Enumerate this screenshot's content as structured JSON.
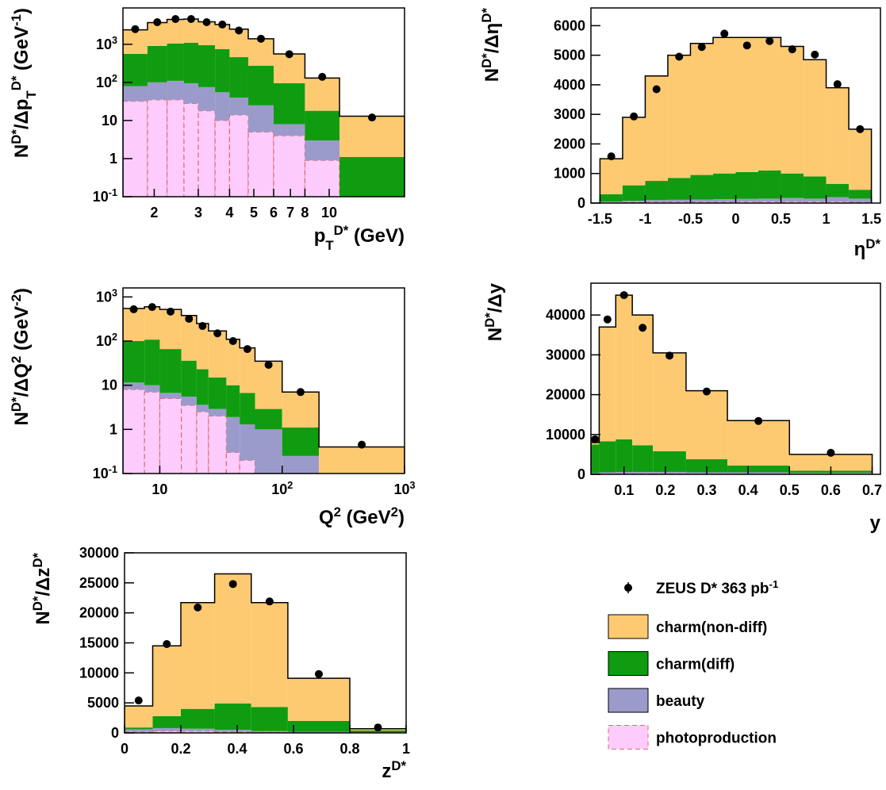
{
  "legend": {
    "points_name": "ZEUS D* 363 pb^{-1}",
    "points_color": "#000000",
    "series": [
      {
        "name": "charm(non-diff)",
        "color": "#fdca72"
      },
      {
        "name": "charm(diff)",
        "color": "#109c10"
      },
      {
        "name": "beauty",
        "color": "#9b9bcb"
      },
      {
        "name": "photoproduction",
        "color": "#fdccfd",
        "edge": "#e06a6a"
      }
    ]
  },
  "chart_data": [
    {
      "type": "histogram",
      "xlabel": "p_{T}^{D*} (GeV)",
      "ylabel": "N^{D*}/Δp_{T}^{D*} (GeV^{-1})",
      "xlog": true,
      "ylog": true,
      "xlim": [
        1.5,
        20
      ],
      "ylim": [
        0.1,
        9000
      ],
      "xticks": [
        2,
        3,
        4,
        5,
        6,
        7,
        8,
        10
      ],
      "yticks": [
        {
          "value": 0.1,
          "label": "10^{-1}"
        },
        1,
        10,
        {
          "value": 100,
          "label": "10^{2}"
        },
        {
          "value": 1000,
          "label": "10^{3}"
        }
      ],
      "bins": [
        1.5,
        1.88,
        2.25,
        2.63,
        3,
        3.5,
        4,
        4.75,
        6,
        8,
        11,
        20
      ],
      "series": [
        {
          "values": [
            1840,
            2790,
            3450,
            3500,
            2950,
            2550,
            2040,
            1125,
            465,
            112,
            11.9
          ]
        },
        {
          "values": [
            480,
            810,
            940,
            1005,
            875,
            695,
            420,
            250,
            87,
            15,
            1.1
          ]
        },
        {
          "values": [
            48,
            65,
            75,
            67,
            57,
            45,
            26,
            20,
            4,
            2.1,
            0
          ]
        },
        {
          "values": [
            32,
            35,
            35,
            28,
            18,
            10,
            14,
            5,
            4,
            0.9,
            0
          ]
        }
      ],
      "points": [
        2500,
        3800,
        4600,
        4600,
        3800,
        3300,
        2300,
        1400,
        550,
        140,
        12
      ]
    },
    {
      "type": "histogram",
      "xlabel": "η^{D*}",
      "ylabel": "N^{D*}/Δη^{D*}",
      "xlog": false,
      "ylog": false,
      "xlim": [
        -1.6,
        1.6
      ],
      "ylim": [
        0,
        6600
      ],
      "xticks": [
        -1.5,
        -1,
        -0.5,
        0,
        0.5,
        1,
        1.5
      ],
      "yticks": [
        0,
        1000,
        2000,
        3000,
        4000,
        5000,
        6000
      ],
      "bins": [
        -1.5,
        -1.25,
        -1,
        -0.75,
        -0.5,
        -0.25,
        0,
        0.25,
        0.5,
        0.75,
        1,
        1.25,
        1.5
      ],
      "series": [
        {
          "values": [
            1200,
            2300,
            3550,
            4150,
            4450,
            4600,
            4550,
            4500,
            4300,
            3950,
            3250,
            2050
          ]
        },
        {
          "values": [
            250,
            520,
            650,
            740,
            830,
            870,
            910,
            950,
            830,
            750,
            450,
            300
          ]
        },
        {
          "values": [
            30,
            50,
            60,
            70,
            80,
            90,
            90,
            100,
            120,
            100,
            150,
            120
          ]
        },
        {
          "values": [
            20,
            30,
            40,
            40,
            40,
            40,
            50,
            50,
            50,
            50,
            50,
            30
          ]
        }
      ],
      "points": [
        1580,
        2930,
        3850,
        4950,
        5280,
        5730,
        5330,
        5480,
        5200,
        5020,
        4020,
        2500
      ]
    },
    {
      "type": "histogram",
      "xlabel": "Q^{2} (GeV^{2})",
      "ylabel": "N^{D*}/ΔQ^{2} (GeV^{-2})",
      "xlog": true,
      "ylog": true,
      "xlim": [
        5,
        1000
      ],
      "ylim": [
        0.1,
        1600
      ],
      "xticks": [
        10,
        {
          "value": 100,
          "label": "10^{2}"
        },
        {
          "value": 1000,
          "label": "10^{3}"
        }
      ],
      "yticks": [
        {
          "value": 0.1,
          "label": "10^{-1}"
        },
        1,
        10,
        {
          "value": 100,
          "label": "10^{2}"
        },
        {
          "value": 1000,
          "label": "10^{3}"
        }
      ],
      "bins": [
        5,
        7.5,
        10,
        15,
        20,
        25,
        35,
        45,
        60,
        100,
        200,
        1000
      ],
      "series": [
        {
          "values": [
            450,
            492,
            454,
            344,
            227,
            155,
            100,
            63.3,
            32.1,
            5.9,
            0.4
          ]
        },
        {
          "values": [
            88.5,
            98,
            59.3,
            30.5,
            19.4,
            12.1,
            8.1,
            5.4,
            1.9,
            0.85,
            0
          ]
        },
        {
          "values": [
            3.5,
            3,
            1.7,
            2,
            1.1,
            0.9,
            1.6,
            1.1,
            1,
            0.25,
            0
          ]
        },
        {
          "values": [
            8,
            7,
            5,
            3.5,
            2.5,
            2,
            0.3,
            0.2,
            0,
            0,
            0
          ]
        }
      ],
      "points": [
        525,
        590,
        465,
        320,
        220,
        150,
        100,
        66,
        29,
        7,
        0.45
      ]
    },
    {
      "type": "histogram",
      "xlabel": "y",
      "ylabel": "N^{D*}/Δy",
      "xlog": false,
      "ylog": false,
      "xlim": [
        0.02,
        0.72
      ],
      "ylim": [
        0,
        48000
      ],
      "xticks": [
        0.1,
        0.2,
        0.3,
        0.4,
        0.5,
        0.6,
        0.7
      ],
      "yticks": [
        0,
        10000,
        20000,
        30000,
        40000
      ],
      "bins": [
        0.02,
        0.04,
        0.08,
        0.12,
        0.17,
        0.25,
        0.35,
        0.5,
        0.7
      ],
      "series": [
        {
          "values": [
            500,
            28700,
            36200,
            32700,
            24700,
            17200,
            11300,
            4100
          ]
        },
        {
          "values": [
            7200,
            7800,
            8200,
            6700,
            5200,
            3300,
            1700,
            500
          ]
        },
        {
          "values": [
            200,
            300,
            400,
            400,
            400,
            350,
            350,
            300
          ]
        },
        {
          "values": [
            100,
            200,
            200,
            200,
            200,
            150,
            150,
            100
          ]
        }
      ],
      "points": [
        8800,
        38900,
        45000,
        36800,
        29800,
        20800,
        13400,
        5400
      ]
    },
    {
      "type": "histogram",
      "xlabel": "z^{D*}",
      "ylabel": "N^{D*}/Δz^{D*}",
      "xlog": false,
      "ylog": false,
      "xlim": [
        0,
        1
      ],
      "ylim": [
        0,
        30000
      ],
      "xticks": [
        0,
        0.2,
        0.4,
        0.6,
        0.8,
        1
      ],
      "yticks": [
        0,
        5000,
        10000,
        15000,
        20000,
        25000,
        30000
      ],
      "bins": [
        0,
        0.1,
        0.2,
        0.32,
        0.45,
        0.58,
        0.8,
        1
      ],
      "series": [
        {
          "values": [
            3600,
            11700,
            17700,
            21600,
            17400,
            7100,
            300
          ]
        },
        {
          "values": [
            300,
            2000,
            3300,
            4400,
            4000,
            1800,
            300
          ]
        },
        {
          "values": [
            400,
            500,
            400,
            300,
            200,
            150,
            70
          ]
        },
        {
          "values": [
            200,
            300,
            300,
            200,
            100,
            50,
            30
          ]
        }
      ],
      "points": [
        5400,
        14800,
        20900,
        24800,
        21900,
        9800,
        900
      ]
    }
  ]
}
